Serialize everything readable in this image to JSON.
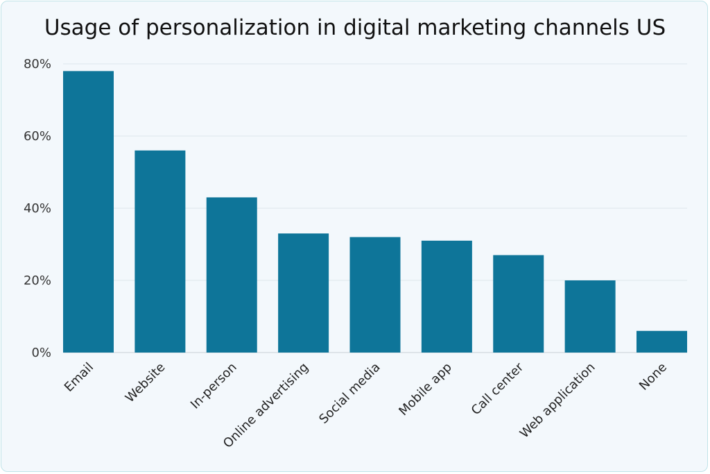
{
  "chart_data": {
    "type": "bar",
    "title": "Usage of personalization in digital marketing channels US",
    "categories": [
      "Email",
      "Website",
      "In-person",
      "Online advertising",
      "Social media",
      "Mobile app",
      "Call center",
      "Web application",
      "None"
    ],
    "values": [
      78,
      56,
      43,
      33,
      32,
      31,
      27,
      20,
      6
    ],
    "ylim": [
      0,
      80
    ],
    "yticks": [
      "0%",
      "20%",
      "40%",
      "60%",
      "80%"
    ],
    "xlabel": "",
    "ylabel": "",
    "grid": true,
    "bar_color": "#0e7599",
    "background": "#f3f8fc"
  }
}
